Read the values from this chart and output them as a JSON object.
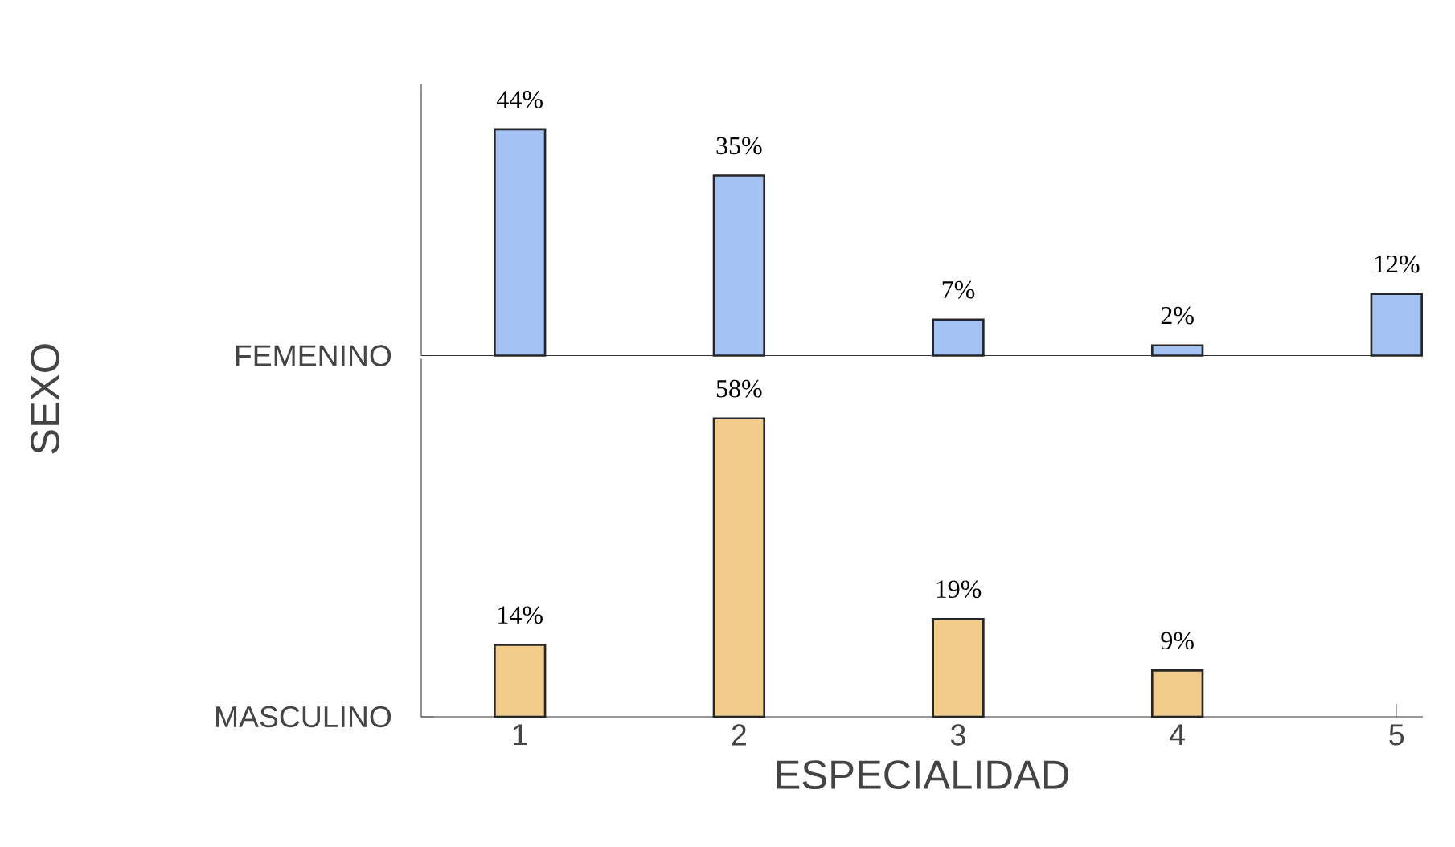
{
  "chart_data": [
    {
      "type": "bar",
      "categories": [
        "1",
        "2",
        "3",
        "4",
        "5"
      ],
      "ylabel": "FEMENINO",
      "color": "#a4c2f4",
      "tick_labels": false,
      "values": [
        44,
        35,
        7,
        2,
        12
      ],
      "value_labels": [
        "44%",
        "35%",
        "7%",
        "2%",
        "12%"
      ]
    },
    {
      "type": "bar",
      "categories": [
        "1",
        "2",
        "3",
        "4",
        "5"
      ],
      "xlabel": "ESPECIALIDAD",
      "ylabel": "MASCULINO",
      "annotations": [
        "SEXO"
      ],
      "color": "#f1cc8b",
      "tick_labels": "x",
      "values": [
        14,
        58,
        19,
        9,
        null
      ],
      "value_labels": [
        "14%",
        "58%",
        "19%",
        "9%",
        null
      ]
    }
  ]
}
